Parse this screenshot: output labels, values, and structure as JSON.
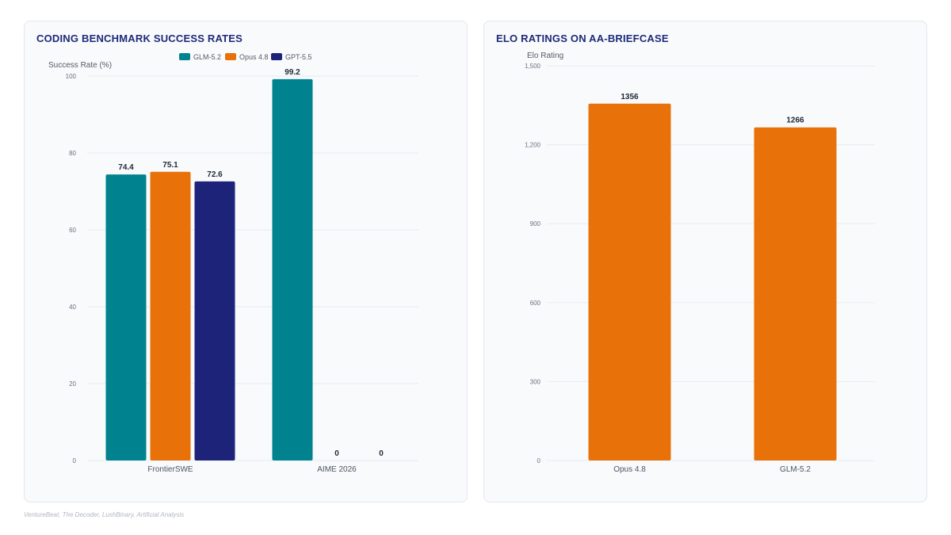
{
  "chart_data": [
    {
      "type": "bar",
      "title": "CODING BENCHMARK SUCCESS RATES",
      "xlabel": "",
      "ylabel": "Success Rate (%)",
      "ylim": [
        0,
        100
      ],
      "yticks": [
        0,
        20,
        40,
        60,
        80,
        100
      ],
      "grid": true,
      "legend": "top-center",
      "categories": [
        "FrontierSWE",
        "AIME 2026"
      ],
      "series": [
        {
          "name": "GLM-5.2",
          "color": "#00838f",
          "values": [
            74.4,
            99.2
          ]
        },
        {
          "name": "Opus 4.8",
          "color": "#e8710a",
          "values": [
            75.1,
            0
          ]
        },
        {
          "name": "GPT-5.5",
          "color": "#1e237a",
          "values": [
            72.6,
            0
          ]
        }
      ]
    },
    {
      "type": "bar",
      "title": "ELO RATINGS ON AA-BRIEFCASE",
      "xlabel": "",
      "ylabel": "Elo Rating",
      "ylim": [
        0,
        1500
      ],
      "yticks": [
        0,
        300,
        600,
        900,
        1200,
        1500
      ],
      "ytick_labels": [
        "0",
        "300",
        "600",
        "900",
        "1,200",
        "1,500"
      ],
      "grid": true,
      "legend": "none",
      "categories": [
        "Opus 4.8",
        "GLM-5.2"
      ],
      "series": [
        {
          "color": "#e8710a",
          "values": [
            1356,
            1266
          ]
        }
      ]
    }
  ],
  "footer": {
    "source": "VentureBeat, The Decoder, LushBinary, Artificial Analysis"
  }
}
